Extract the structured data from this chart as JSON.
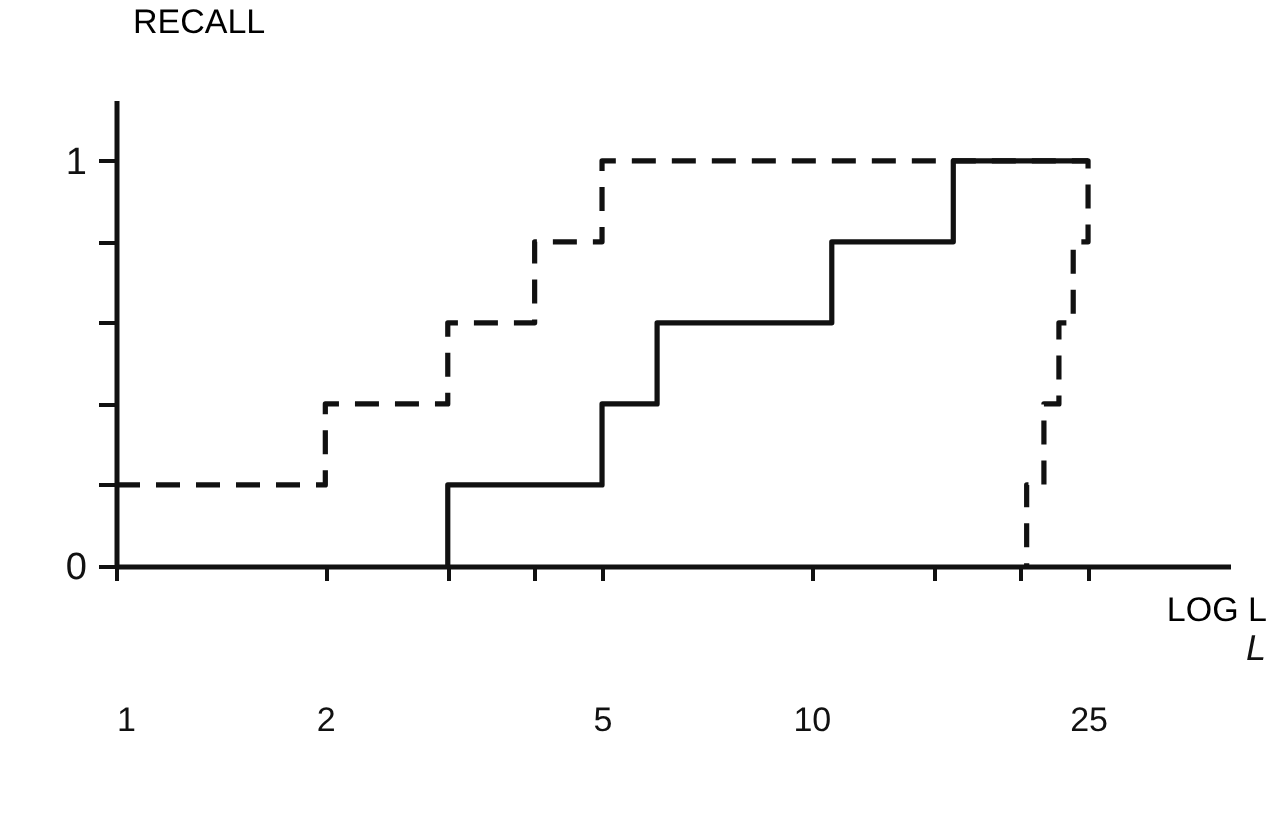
{
  "chart_data": {
    "type": "line",
    "ylabel": "RECALL",
    "xlabel": "LOG L",
    "annotations": [
      "L"
    ],
    "log": "x",
    "xlim": [
      1,
      40
    ],
    "xticks": [
      1,
      2,
      {
        "value": 3,
        "label": null
      },
      {
        "value": 4,
        "label": null
      },
      5,
      10,
      {
        "value": 15,
        "label": null
      },
      {
        "value": 20,
        "label": null
      },
      25
    ],
    "ylim": [
      0,
      1.15
    ],
    "yticks": [
      0,
      {
        "value": 0.2,
        "label": null
      },
      {
        "value": 0.4,
        "label": null
      },
      {
        "value": 0.6,
        "label": null
      },
      {
        "value": 0.8,
        "label": null
      },
      1
    ],
    "series": [
      {
        "color": "#111111",
        "line_style": "dashed",
        "x": [
          1,
          2,
          2,
          3,
          3,
          4,
          4,
          5,
          5,
          25,
          25,
          23.8,
          23.8,
          22.7,
          22.7,
          21.6,
          21.6,
          20.4,
          20.4
        ],
        "values": [
          0.2,
          0.2,
          0.4,
          0.4,
          0.6,
          0.6,
          0.8,
          0.8,
          1,
          1,
          0.8,
          0.8,
          0.6,
          0.6,
          0.4,
          0.4,
          0.2,
          0.2,
          0
        ]
      },
      {
        "color": "#111111",
        "line_style": "solid",
        "x": [
          3,
          3,
          5,
          5,
          6,
          6,
          10.7,
          10.7,
          16,
          16,
          25
        ],
        "values": [
          0,
          0.2,
          0.2,
          0.4,
          0.4,
          0.6,
          0.6,
          0.8,
          0.8,
          1,
          1
        ]
      }
    ]
  }
}
